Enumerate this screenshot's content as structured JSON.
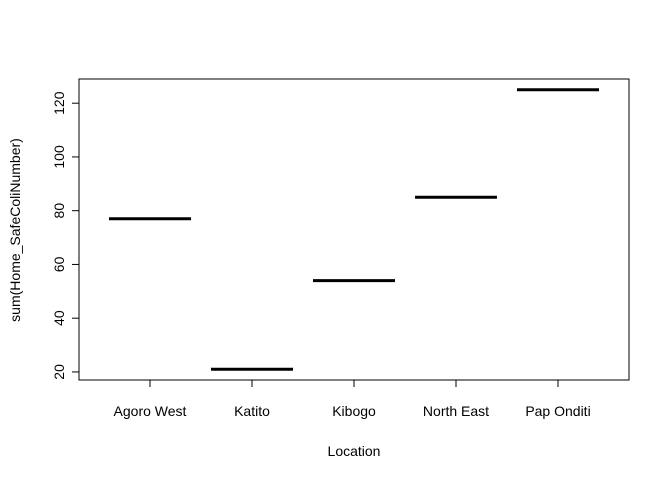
{
  "chart_data": {
    "type": "bar",
    "style": "horizontal segments (R stripchart-style median lines)",
    "categories": [
      "Agoro West",
      "Katito",
      "Kibogo",
      "North East",
      "Pap Onditi"
    ],
    "values": [
      77,
      21,
      54,
      85,
      125
    ],
    "xlabel": "Location",
    "ylabel": "sum(Home_SafeColiNumber)",
    "ylim": [
      17,
      129
    ],
    "yticks": [
      20,
      40,
      60,
      80,
      100,
      120
    ],
    "grid": false,
    "legend": "none",
    "colors": {
      "segment": "#000000",
      "axis": "#000000",
      "background": "#ffffff"
    }
  }
}
